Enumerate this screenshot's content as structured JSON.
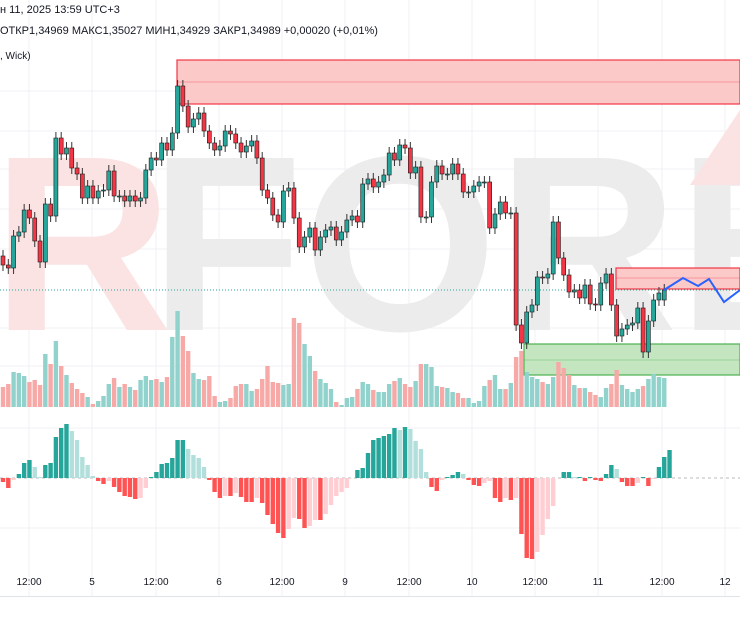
{
  "header": {
    "date_line": "н 11, 2025 13:59 UTC+3",
    "ohlc_line": "ОТКР1,34969  МАКС1,35027  МИН1,34929  ЗАКР1,34989  +0,00020 (+0,01%)",
    "indicator_line": ", Wick)"
  },
  "watermark": "RFOREX.c",
  "colors": {
    "up": "#26a69a",
    "down": "#f23645",
    "volume_up": "#92d2cc",
    "volume_down": "#f7a9a7",
    "hist_up_strong": "#26a69a",
    "hist_up_weak": "#b2dfdb",
    "hist_down_strong": "#ff5252",
    "hist_down_weak": "#ffcdd2",
    "resistance_zone": "#fcc9c9",
    "support_zone": "#c3e6c1",
    "forecast_line": "#2962ff"
  },
  "chart_data": {
    "type": "candlestick",
    "x_ticks": [
      "12:00",
      "5",
      "12:00",
      "6",
      "12:00",
      "9",
      "12:00",
      "10",
      "12:00",
      "11",
      "12:00",
      "12"
    ],
    "last_price": 1.34989,
    "first_open": 1.35057,
    "closes": [
      1.35039,
      1.35033,
      1.35097,
      1.35105,
      1.35149,
      1.35133,
      1.35087,
      1.35045,
      1.35161,
      1.35137,
      1.35293,
      1.35261,
      1.35273,
      1.35233,
      1.35221,
      1.35173,
      1.35197,
      1.35173,
      1.35187,
      1.35189,
      1.35227,
      1.35177,
      1.35177,
      1.35167,
      1.35177,
      1.35167,
      1.35173,
      1.35229,
      1.35253,
      1.35249,
      1.35283,
      1.35269,
      1.35303,
      1.35397,
      1.35357,
      1.35315,
      1.35331,
      1.35343,
      1.35307,
      1.35283,
      1.35269,
      1.35277,
      1.35307,
      1.35301,
      1.35283,
      1.35265,
      1.35277,
      1.35287,
      1.35253,
      1.35189,
      1.35173,
      1.35139,
      1.35125,
      1.35187,
      1.35193,
      1.35133,
      1.35075,
      1.35095,
      1.35113,
      1.35069,
      1.35095,
      1.35109,
      1.35115,
      1.35089,
      1.35105,
      1.35129,
      1.35137,
      1.35125,
      1.35201,
      1.35211,
      1.35195,
      1.35205,
      1.35219,
      1.35263,
      1.35249,
      1.35279,
      1.35273,
      1.35223,
      1.35235,
      1.35135,
      1.35135,
      1.35205,
      1.35237,
      1.35221,
      1.35221,
      1.35241,
      1.35221,
      1.35185,
      1.35185,
      1.35197,
      1.35205,
      1.35205,
      1.35113,
      1.35141,
      1.35165,
      1.35143,
      1.35143,
      1.34919,
      1.34883,
      1.34945,
      1.34959,
      1.35015,
      1.35013,
      1.35021,
      1.35125,
      1.35053,
      1.35019,
      1.34985,
      1.34989,
      1.34973,
      1.34999,
      1.34961,
      1.34959,
      1.35003,
      1.35021,
      1.34959,
      1.34897,
      1.34911,
      1.34919,
      1.34923,
      1.34953,
      1.34865,
      1.34927,
      1.34969,
      1.34983,
      1.34989
    ],
    "volume": [
      20,
      23,
      35,
      34,
      31,
      25,
      27,
      22,
      53,
      43,
      66,
      41,
      32,
      24,
      18,
      14,
      10,
      3,
      6,
      11,
      23,
      29,
      20,
      23,
      20,
      17,
      27,
      31,
      27,
      28,
      25,
      30,
      70,
      96,
      71,
      56,
      34,
      28,
      27,
      31,
      11,
      5,
      6,
      9,
      21,
      23,
      23,
      16,
      18,
      28,
      41,
      25,
      24,
      22,
      23,
      89,
      84,
      63,
      51,
      36,
      28,
      24,
      18,
      5,
      2,
      9,
      10,
      18,
      25,
      23,
      17,
      15,
      15,
      23,
      26,
      29,
      23,
      20,
      26,
      43,
      43,
      40,
      21,
      20,
      19,
      15,
      14,
      9,
      9,
      4,
      6,
      21,
      27,
      32,
      18,
      18,
      24,
      50,
      56,
      35,
      30,
      28,
      25,
      23,
      30,
      45,
      39,
      32,
      22,
      19,
      19,
      15,
      12,
      10,
      19,
      23,
      37,
      22,
      18,
      15,
      18,
      21,
      28,
      33,
      30,
      29
    ],
    "oscillator": [
      -4,
      -10,
      -2,
      4,
      15,
      18,
      11,
      1,
      13,
      15,
      41,
      50,
      54,
      47,
      38,
      21,
      13,
      2,
      -3,
      -6,
      -3,
      -9,
      -14,
      -18,
      -19,
      -21,
      -20,
      -10,
      1,
      6,
      14,
      15,
      20,
      38,
      38,
      29,
      23,
      20,
      11,
      -2,
      -14,
      -20,
      -18,
      -18,
      -15,
      -19,
      -24,
      -24,
      -20,
      -25,
      -37,
      -46,
      -55,
      -60,
      -51,
      -40,
      -41,
      -50,
      -48,
      -42,
      -42,
      -36,
      -27,
      -18,
      -14,
      -10,
      0,
      8,
      10,
      25,
      38,
      40,
      42,
      44,
      50,
      48,
      51,
      49,
      37,
      29,
      6,
      -9,
      -13,
      -2,
      1,
      3,
      6,
      4,
      -2,
      -7,
      -8,
      -5,
      -3,
      -20,
      -24,
      -20,
      -22,
      -20,
      -56,
      -80,
      -81,
      -74,
      -57,
      -41,
      -28,
      0,
      6,
      6,
      1,
      1,
      -3,
      1,
      -2,
      -3,
      4,
      13,
      9,
      -4,
      -8,
      -8,
      -5,
      1,
      -8,
      -1,
      11,
      21,
      28
    ],
    "forecast": [
      1.34989,
      1.35013,
      1.34997,
      1.35011,
      1.34965,
      1.34989
    ],
    "zones": [
      {
        "kind": "resistance",
        "top": 1.35449,
        "mid": 1.35405,
        "bottom": 1.35361
      },
      {
        "kind": "resistance",
        "top": 1.35033,
        "mid": 1.35013,
        "bottom": 1.34991
      },
      {
        "kind": "support",
        "top": 1.34881,
        "mid": 1.34849,
        "bottom": 1.34819
      }
    ]
  }
}
